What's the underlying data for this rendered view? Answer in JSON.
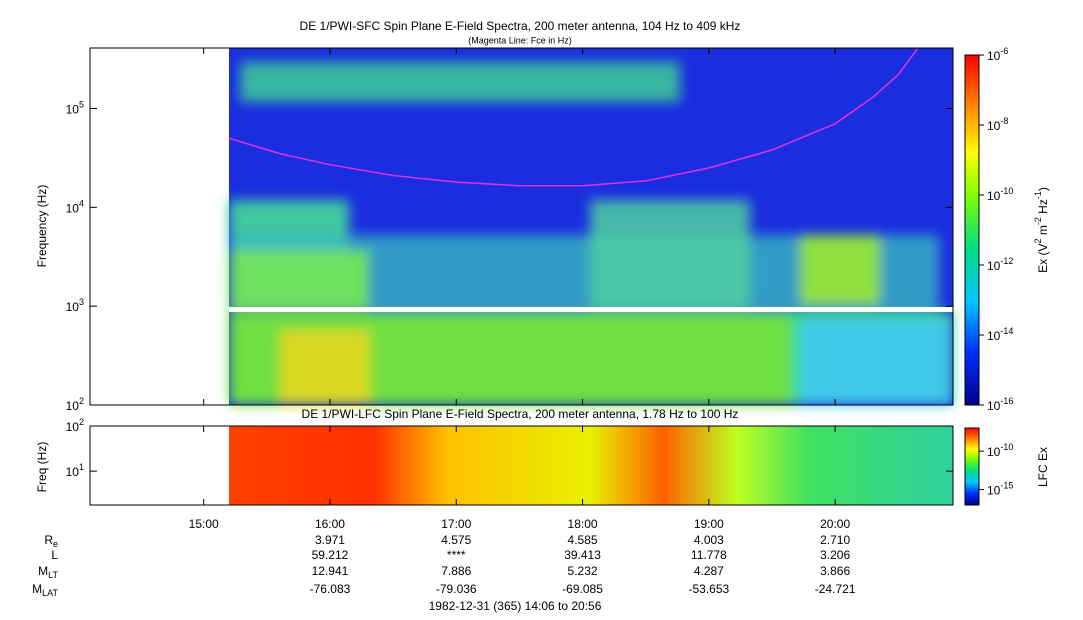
{
  "chart_data": [
    {
      "type": "spectrogram",
      "title": "DE 1/PWI-SFC  Spin Plane E-Field Spectra, 200 meter antenna, 104 Hz to 409 kHz",
      "subtitle": "(Magenta Line: Fce in Hz)",
      "y_label": "Frequency (Hz)",
      "log_y": true,
      "ylim": [
        100,
        409000
      ],
      "yticks": [
        {
          "value": 100,
          "label": "10^2"
        },
        {
          "value": 1000,
          "label": "10^3"
        },
        {
          "value": 10000,
          "label": "10^4"
        },
        {
          "value": 100000,
          "label": "10^5"
        }
      ],
      "xlim": [
        14.1,
        20.9333
      ],
      "colorbar_label": "Ex (V^2 m^-2 Hz^-1)",
      "zlim": [
        1e-16,
        1e-06
      ],
      "zticks": [
        {
          "value": 1e-16,
          "label": "10^-16"
        },
        {
          "value": 1e-14,
          "label": "10^-14"
        },
        {
          "value": 1e-12,
          "label": "10^-12"
        },
        {
          "value": 1e-10,
          "label": "10^-10"
        },
        {
          "value": 1e-08,
          "label": "10^-8"
        },
        {
          "value": 1e-06,
          "label": "10^-6"
        }
      ],
      "fce": {
        "color": "#e030e0",
        "x": [
          15.2,
          15.6,
          16.0,
          16.5,
          17.0,
          17.5,
          18.0,
          18.5,
          19.0,
          19.5,
          20.0,
          20.3,
          20.5,
          20.65
        ],
        "values": [
          50000,
          35000,
          27000,
          21000,
          18000,
          16500,
          16500,
          18500,
          25000,
          38000,
          70000,
          130000,
          220000,
          400000
        ]
      }
    },
    {
      "type": "spectrogram",
      "title": "DE 1/PWI-LFC  Spin Plane E-Field Spectra, 200 meter antenna, 1.78 Hz to 100 Hz",
      "y_label": "Freq (Hz)",
      "log_y": true,
      "ylim": [
        1.78,
        100
      ],
      "yticks": [
        {
          "value": 10,
          "label": "10^1"
        },
        {
          "value": 100,
          "label": "10^2"
        }
      ],
      "xlim": [
        14.1,
        20.9333
      ],
      "xticks": [
        {
          "value": 15,
          "label": "15:00"
        },
        {
          "value": 16,
          "label": "16:00"
        },
        {
          "value": 17,
          "label": "17:00"
        },
        {
          "value": 18,
          "label": "18:00"
        },
        {
          "value": 19,
          "label": "19:00"
        },
        {
          "value": 20,
          "label": "20:00"
        }
      ],
      "colorbar_label": "LFC Ex",
      "zlim": [
        1e-17,
        1e-07
      ],
      "zticks": [
        {
          "value": 1e-15,
          "label": "10^-15"
        },
        {
          "value": 1e-10,
          "label": "10^-10"
        }
      ]
    }
  ],
  "ephemeris": {
    "times": [
      16,
      17,
      18,
      19,
      20
    ],
    "rows": [
      {
        "label": "R_e",
        "values": [
          "3.971",
          "4.575",
          "4.585",
          "4.003",
          "2.710"
        ]
      },
      {
        "label": "L",
        "values": [
          "59.212",
          "****",
          "39.413",
          "11.778",
          "3.206"
        ]
      },
      {
        "label": "M_LT",
        "values": [
          "12.941",
          "7.886",
          "5.232",
          "4.287",
          "3.866"
        ]
      },
      {
        "label": "M_LAT",
        "values": [
          "-76.083",
          "-79.036",
          "-69.085",
          "-53.653",
          "-24.721"
        ]
      }
    ]
  },
  "footer": "1982-12-31 (365) 14:06 to 20:56"
}
